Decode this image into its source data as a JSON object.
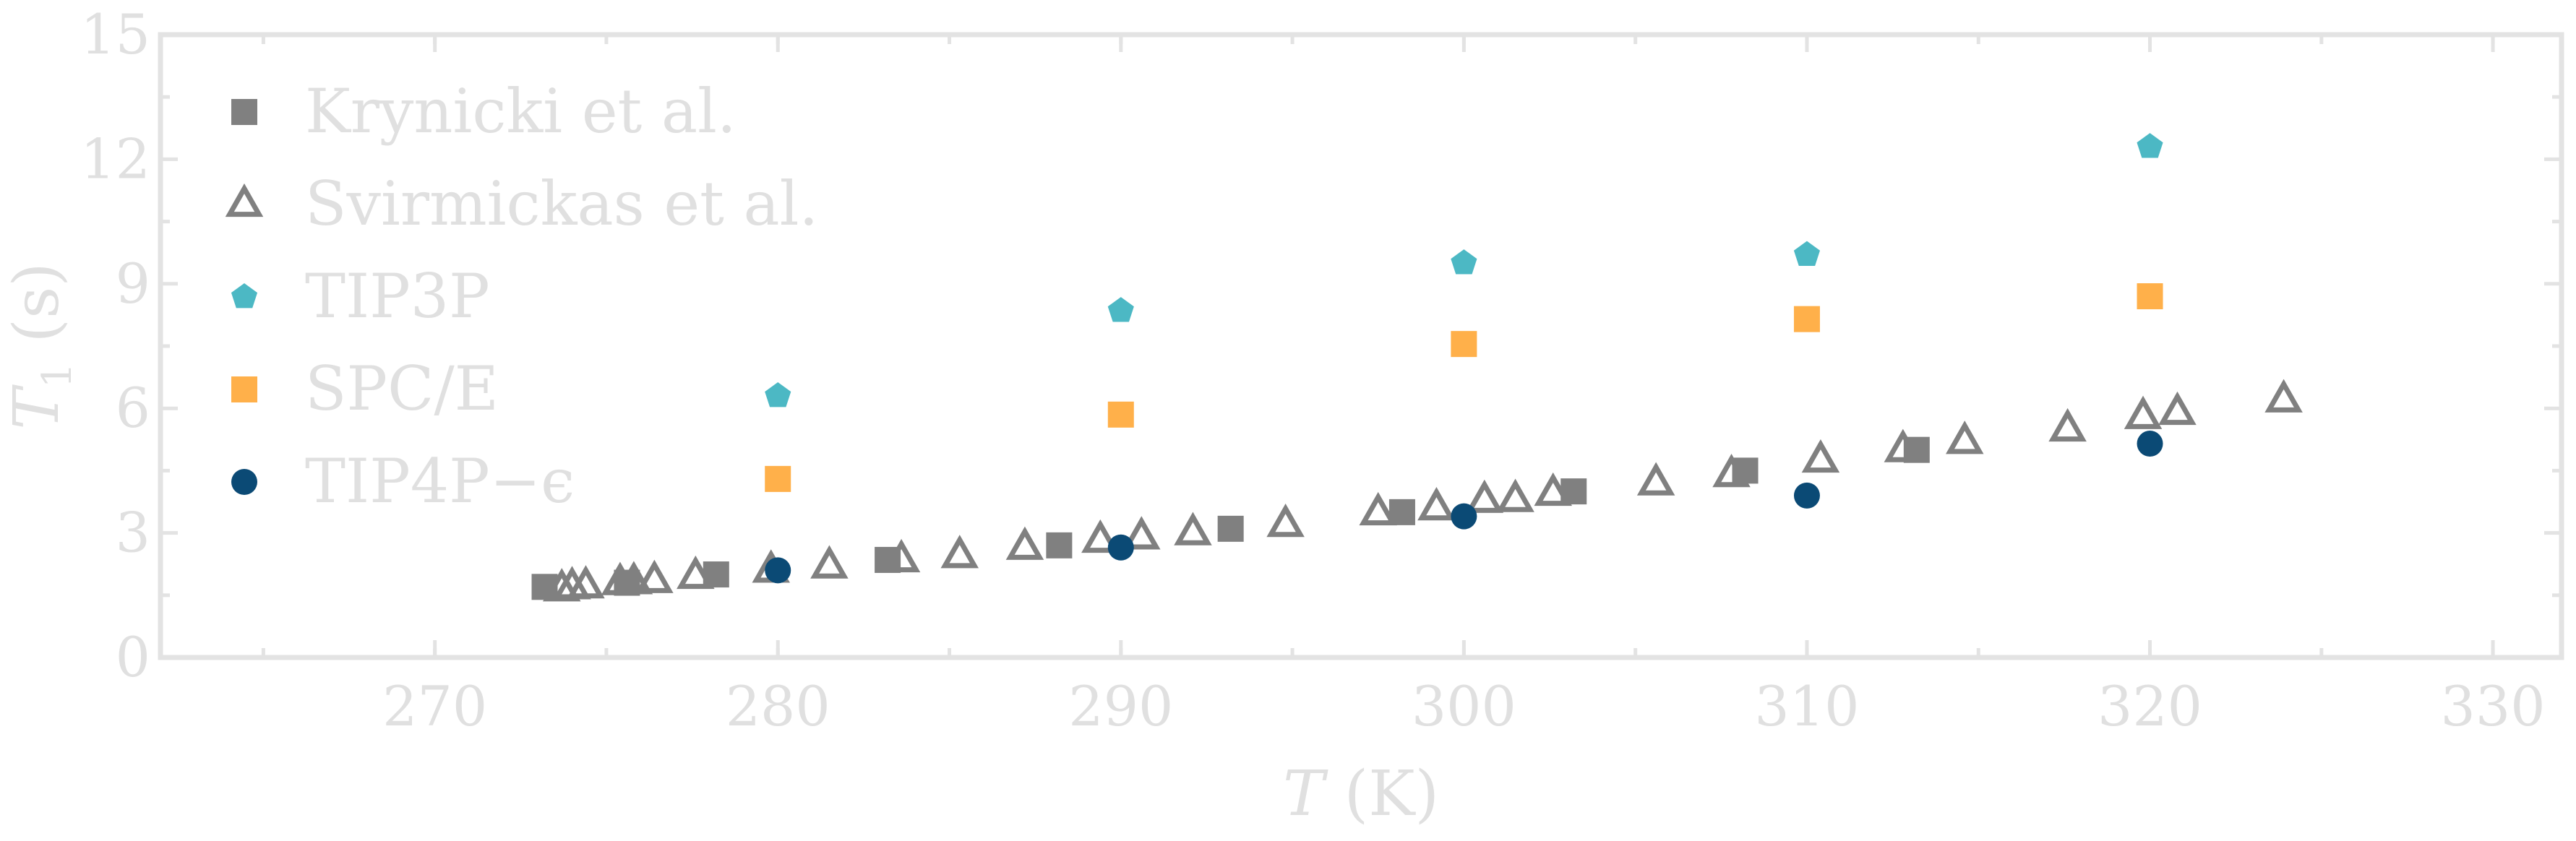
{
  "chart_data": {
    "type": "scatter",
    "title": "",
    "xlabel": "T (K)",
    "ylabel": "T1 (s)",
    "xlim": [
      262,
      332
    ],
    "ylim": [
      0,
      15
    ],
    "xticks": [
      270,
      280,
      290,
      300,
      310,
      320,
      330
    ],
    "yticks": [
      0,
      3,
      6,
      9,
      12,
      15
    ],
    "grid": false,
    "legend_position": "top-left",
    "series": [
      {
        "name": "Krynicki et al.",
        "marker": "square-filled",
        "color": "#808080",
        "points": [
          [
            273.2,
            1.7
          ],
          [
            275.6,
            1.8
          ],
          [
            278.2,
            2.0
          ],
          [
            283.2,
            2.35
          ],
          [
            288.2,
            2.7
          ],
          [
            293.2,
            3.1
          ],
          [
            298.2,
            3.5
          ],
          [
            303.2,
            4.0
          ],
          [
            308.2,
            4.5
          ],
          [
            313.2,
            5.0
          ]
        ]
      },
      {
        "name": "Svirmickas et al.",
        "marker": "triangle-open",
        "color": "#808080",
        "points": [
          [
            273.7,
            1.65
          ],
          [
            274.0,
            1.7
          ],
          [
            274.4,
            1.72
          ],
          [
            275.4,
            1.8
          ],
          [
            275.8,
            1.82
          ],
          [
            276.4,
            1.85
          ],
          [
            277.6,
            1.95
          ],
          [
            279.8,
            2.1
          ],
          [
            281.5,
            2.2
          ],
          [
            283.6,
            2.35
          ],
          [
            285.3,
            2.45
          ],
          [
            287.2,
            2.65
          ],
          [
            289.4,
            2.82
          ],
          [
            290.6,
            2.9
          ],
          [
            292.1,
            3.0
          ],
          [
            294.8,
            3.2
          ],
          [
            297.5,
            3.48
          ],
          [
            299.2,
            3.6
          ],
          [
            300.6,
            3.78
          ],
          [
            301.5,
            3.8
          ],
          [
            302.6,
            3.95
          ],
          [
            305.6,
            4.2
          ],
          [
            307.8,
            4.4
          ],
          [
            310.4,
            4.75
          ],
          [
            312.8,
            5.0
          ],
          [
            314.6,
            5.2
          ],
          [
            317.6,
            5.5
          ],
          [
            319.8,
            5.8
          ],
          [
            320.8,
            5.9
          ],
          [
            323.9,
            6.2
          ]
        ]
      },
      {
        "name": "TIP3P",
        "marker": "pentagon-filled",
        "color": "#4cb8c4",
        "points": [
          [
            280,
            6.3
          ],
          [
            290,
            8.35
          ],
          [
            300,
            9.5
          ],
          [
            310,
            9.7
          ],
          [
            320,
            12.3
          ]
        ]
      },
      {
        "name": "SPC/E",
        "marker": "square-filled",
        "color": "#ffb04a",
        "points": [
          [
            280,
            4.3
          ],
          [
            290,
            5.85
          ],
          [
            300,
            7.55
          ],
          [
            310,
            8.15
          ],
          [
            320,
            8.7
          ]
        ]
      },
      {
        "name": "TIP4P−ϵ",
        "marker": "circle-filled",
        "color": "#0b4a75",
        "points": [
          [
            280,
            2.1
          ],
          [
            290,
            2.65
          ],
          [
            300,
            3.4
          ],
          [
            310,
            3.9
          ],
          [
            320,
            5.15
          ]
        ]
      }
    ]
  }
}
